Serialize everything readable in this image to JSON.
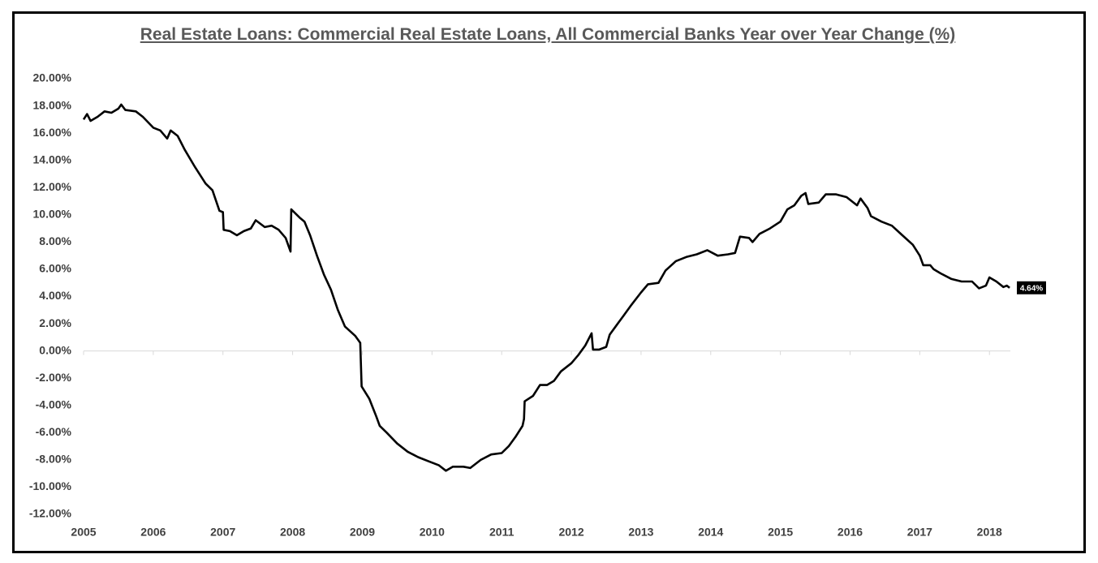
{
  "chart_data": {
    "type": "line",
    "title": "Real Estate Loans: Commercial Real Estate Loans, All Commercial Banks Year over Year Change (%)",
    "color": "#000000",
    "x": [
      2005.0,
      2005.05,
      2005.1,
      2005.2,
      2005.3,
      2005.4,
      2005.5,
      2005.54,
      2005.6,
      2005.75,
      2005.85,
      2006.0,
      2006.1,
      2006.2,
      2006.25,
      2006.35,
      2006.45,
      2006.6,
      2006.75,
      2006.85,
      2006.95,
      2007.0,
      2007.01,
      2007.1,
      2007.2,
      2007.3,
      2007.4,
      2007.47,
      2007.6,
      2007.7,
      2007.8,
      2007.9,
      2007.97,
      2007.98,
      2008.1,
      2008.17,
      2008.25,
      2008.35,
      2008.45,
      2008.55,
      2008.65,
      2008.75,
      2008.9,
      2008.97,
      2008.99,
      2009.1,
      2009.2,
      2009.25,
      2009.35,
      2009.5,
      2009.65,
      2009.8,
      2009.95,
      2010.1,
      2010.2,
      2010.3,
      2010.45,
      2010.55,
      2010.7,
      2010.85,
      2011.0,
      2011.1,
      2011.2,
      2011.3,
      2011.32,
      2011.33,
      2011.45,
      2011.55,
      2011.65,
      2011.75,
      2011.85,
      2012.0,
      2012.1,
      2012.2,
      2012.29,
      2012.31,
      2012.4,
      2012.5,
      2012.55,
      2012.65,
      2012.75,
      2012.85,
      2013.0,
      2013.1,
      2013.25,
      2013.35,
      2013.5,
      2013.65,
      2013.8,
      2013.95,
      2014.1,
      2014.25,
      2014.35,
      2014.42,
      2014.55,
      2014.6,
      2014.7,
      2014.85,
      2015.0,
      2015.1,
      2015.2,
      2015.3,
      2015.36,
      2015.4,
      2015.55,
      2015.65,
      2015.8,
      2015.95,
      2016.0,
      2016.1,
      2016.15,
      2016.25,
      2016.3,
      2016.45,
      2016.6,
      2016.75,
      2016.9,
      2017.0,
      2017.05,
      2017.15,
      2017.2,
      2017.3,
      2017.45,
      2017.6,
      2017.75,
      2017.85,
      2017.95,
      2018.0,
      2018.1,
      2018.2,
      2018.25,
      2018.29
    ],
    "values": [
      17.0,
      17.4,
      16.9,
      17.2,
      17.6,
      17.5,
      17.8,
      18.1,
      17.7,
      17.6,
      17.2,
      16.4,
      16.2,
      15.6,
      16.2,
      15.8,
      14.8,
      13.5,
      12.3,
      11.8,
      10.3,
      10.2,
      8.9,
      8.8,
      8.5,
      8.8,
      9.0,
      9.6,
      9.1,
      9.2,
      8.9,
      8.3,
      7.3,
      10.4,
      9.8,
      9.5,
      8.5,
      7.0,
      5.6,
      4.5,
      3.0,
      1.8,
      1.1,
      0.6,
      -2.6,
      -3.5,
      -4.8,
      -5.5,
      -6.0,
      -6.8,
      -7.4,
      -7.8,
      -8.1,
      -8.4,
      -8.8,
      -8.5,
      -8.5,
      -8.6,
      -8.0,
      -7.6,
      -7.5,
      -7.0,
      -6.3,
      -5.5,
      -5.0,
      -3.7,
      -3.3,
      -2.5,
      -2.5,
      -2.2,
      -1.5,
      -0.9,
      -0.3,
      0.4,
      1.3,
      0.1,
      0.1,
      0.3,
      1.2,
      1.9,
      2.6,
      3.3,
      4.3,
      4.9,
      5.0,
      5.9,
      6.6,
      6.9,
      7.1,
      7.4,
      7.0,
      7.1,
      7.2,
      8.4,
      8.3,
      8.0,
      8.6,
      9.0,
      9.5,
      10.4,
      10.7,
      11.4,
      11.6,
      10.8,
      10.9,
      11.5,
      11.5,
      11.3,
      11.1,
      10.7,
      11.2,
      10.5,
      9.9,
      9.5,
      9.2,
      8.5,
      7.8,
      7.0,
      6.3,
      6.3,
      6.0,
      5.7,
      5.3,
      5.1,
      5.1,
      4.6,
      4.8,
      5.4,
      5.1,
      4.7,
      4.8,
      4.64
    ],
    "xlim": [
      2005,
      2018.3
    ],
    "xticks": [
      2005,
      2006,
      2007,
      2008,
      2009,
      2010,
      2011,
      2012,
      2013,
      2014,
      2015,
      2016,
      2017,
      2018
    ],
    "ylim": [
      -12,
      20
    ],
    "yticks": [
      {
        "value": 20,
        "label": "20.00%"
      },
      {
        "value": 18,
        "label": "18.00%"
      },
      {
        "value": 16,
        "label": "16.00%"
      },
      {
        "value": 14,
        "label": "14.00%"
      },
      {
        "value": 12,
        "label": "12.00%"
      },
      {
        "value": 10,
        "label": "10.00%"
      },
      {
        "value": 8,
        "label": "8.00%"
      },
      {
        "value": 6,
        "label": "6.00%"
      },
      {
        "value": 4,
        "label": "4.00%"
      },
      {
        "value": 2,
        "label": "2.00%"
      },
      {
        "value": 0,
        "label": "0.00%"
      },
      {
        "value": -2,
        "label": "-2.00%"
      },
      {
        "value": -4,
        "label": "-4.00%"
      },
      {
        "value": -6,
        "label": "-6.00%"
      },
      {
        "value": -8,
        "label": "-8.00%"
      },
      {
        "value": -10,
        "label": "-10.00%"
      },
      {
        "value": -12,
        "label": "-12.00%"
      }
    ],
    "annotations": [
      {
        "label": "4.64%",
        "y": 4.64
      }
    ],
    "grid": false
  }
}
